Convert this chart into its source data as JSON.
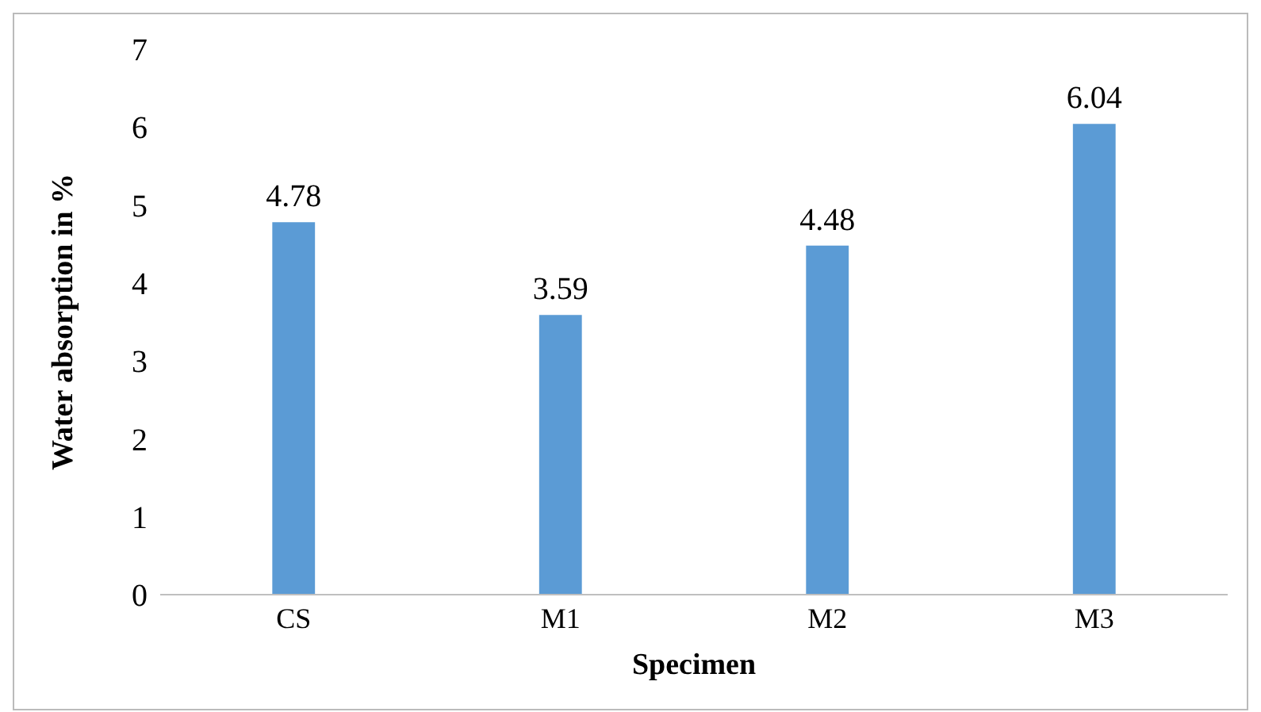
{
  "chart_data": {
    "type": "bar",
    "xlabel": "Specimen",
    "ylabel": "Water absorption in %",
    "categories": [
      "CS",
      "M1",
      "M2",
      "M3"
    ],
    "values": [
      4.78,
      3.59,
      4.48,
      6.04
    ],
    "color": "#5b9bd5",
    "ylim": [
      0,
      7
    ],
    "yticks": [
      0,
      1,
      2,
      3,
      4,
      5,
      6,
      7
    ],
    "data_labels": true,
    "grid": false,
    "legend": false
  }
}
